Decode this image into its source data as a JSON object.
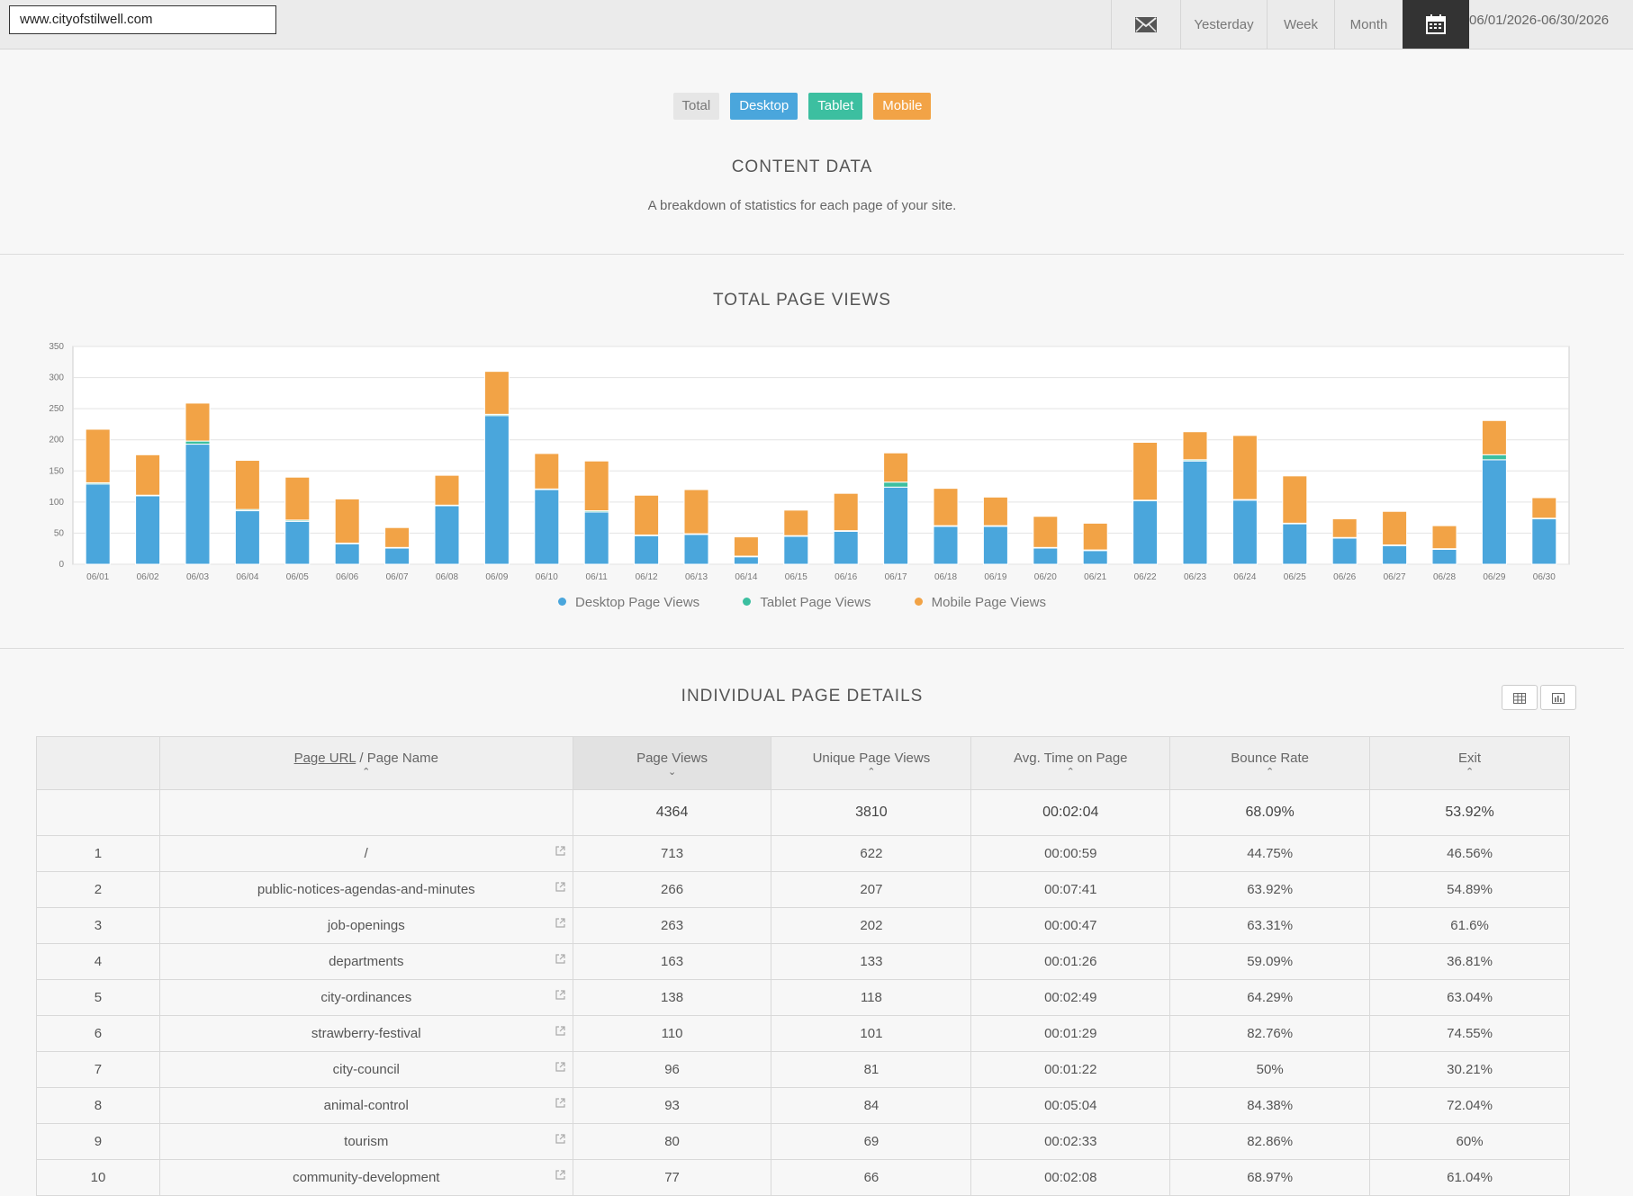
{
  "header": {
    "site": "www.cityofstilwell.com",
    "nav": {
      "yesterday": "Yesterday",
      "week": "Week",
      "month": "Month"
    },
    "email_icon": "envelope-icon",
    "calendar_icon": "calendar-icon",
    "date_range": "06/01/2026-06/30/2026"
  },
  "filters": [
    {
      "label": "Total",
      "color": "#e6e6e6"
    },
    {
      "label": "Desktop",
      "color": "#4aa6dc"
    },
    {
      "label": "Tablet",
      "color": "#3cbfa0"
    },
    {
      "label": "Mobile",
      "color": "#f2a346"
    }
  ],
  "content_section": {
    "title": "CONTENT DATA",
    "subtitle": "A breakdown of statistics for each page of your site."
  },
  "chart_title": "TOTAL PAGE VIEWS",
  "chart_data": {
    "type": "bar",
    "stacked": true,
    "categories": [
      "06/01",
      "06/02",
      "06/03",
      "06/04",
      "06/05",
      "06/06",
      "06/07",
      "06/08",
      "06/09",
      "06/10",
      "06/11",
      "06/12",
      "06/13",
      "06/14",
      "06/15",
      "06/16",
      "06/17",
      "06/18",
      "06/19",
      "06/20",
      "06/21",
      "06/22",
      "06/23",
      "06/24",
      "06/25",
      "06/26",
      "06/27",
      "06/28",
      "06/29",
      "06/30"
    ],
    "series": [
      {
        "name": "Desktop Page Views",
        "color": "#4aa6dc",
        "values": [
          129,
          110,
          193,
          86,
          69,
          33,
          26,
          94,
          239,
          120,
          84,
          46,
          48,
          12,
          45,
          53,
          124,
          61,
          61,
          26,
          22,
          102,
          166,
          103,
          65,
          42,
          30,
          24,
          168,
          73
        ]
      },
      {
        "name": "Tablet Page Views",
        "color": "#3cbfa0",
        "values": [
          2,
          1,
          5,
          2,
          2,
          1,
          1,
          1,
          2,
          1,
          2,
          1,
          1,
          1,
          1,
          1,
          8,
          1,
          1,
          1,
          1,
          1,
          2,
          1,
          1,
          1,
          1,
          1,
          8,
          1
        ]
      },
      {
        "name": "Mobile Page Views",
        "color": "#f2a346",
        "values": [
          86,
          65,
          61,
          79,
          69,
          71,
          32,
          48,
          69,
          57,
          80,
          64,
          71,
          31,
          41,
          60,
          47,
          60,
          46,
          50,
          43,
          93,
          45,
          103,
          76,
          30,
          54,
          37,
          55,
          33
        ]
      }
    ],
    "ylim": [
      0,
      350
    ],
    "yticks": [
      0,
      50,
      100,
      150,
      200,
      250,
      300,
      350
    ],
    "grid": true,
    "legend_position": "bottom"
  },
  "details": {
    "title": "INDIVIDUAL PAGE DETAILS",
    "view_icons": [
      "table-icon",
      "bar-chart-icon"
    ],
    "columns": {
      "url_link": "Page URL",
      "url_sep": " / ",
      "url_name": "Page Name",
      "page_views": "Page Views",
      "unique": "Unique Page Views",
      "avg_time": "Avg. Time on Page",
      "bounce": "Bounce Rate",
      "exit": "Exit"
    },
    "totals": {
      "page_views": "4364",
      "unique": "3810",
      "avg_time": "00:02:04",
      "bounce": "68.09%",
      "exit": "53.92%"
    },
    "rows": [
      {
        "n": "1",
        "url": "/",
        "pv": "713",
        "upv": "622",
        "time": "00:00:59",
        "bounce": "44.75%",
        "exit": "46.56%"
      },
      {
        "n": "2",
        "url": "public-notices-agendas-and-minutes",
        "pv": "266",
        "upv": "207",
        "time": "00:07:41",
        "bounce": "63.92%",
        "exit": "54.89%"
      },
      {
        "n": "3",
        "url": "job-openings",
        "pv": "263",
        "upv": "202",
        "time": "00:00:47",
        "bounce": "63.31%",
        "exit": "61.6%"
      },
      {
        "n": "4",
        "url": "departments",
        "pv": "163",
        "upv": "133",
        "time": "00:01:26",
        "bounce": "59.09%",
        "exit": "36.81%"
      },
      {
        "n": "5",
        "url": "city-ordinances",
        "pv": "138",
        "upv": "118",
        "time": "00:02:49",
        "bounce": "64.29%",
        "exit": "63.04%"
      },
      {
        "n": "6",
        "url": "strawberry-festival",
        "pv": "110",
        "upv": "101",
        "time": "00:01:29",
        "bounce": "82.76%",
        "exit": "74.55%"
      },
      {
        "n": "7",
        "url": "city-council",
        "pv": "96",
        "upv": "81",
        "time": "00:01:22",
        "bounce": "50%",
        "exit": "30.21%"
      },
      {
        "n": "8",
        "url": "animal-control",
        "pv": "93",
        "upv": "84",
        "time": "00:05:04",
        "bounce": "84.38%",
        "exit": "72.04%"
      },
      {
        "n": "9",
        "url": "tourism",
        "pv": "80",
        "upv": "69",
        "time": "00:02:33",
        "bounce": "82.86%",
        "exit": "60%"
      },
      {
        "n": "10",
        "url": "community-development",
        "pv": "77",
        "upv": "66",
        "time": "00:02:08",
        "bounce": "68.97%",
        "exit": "61.04%"
      }
    ]
  }
}
